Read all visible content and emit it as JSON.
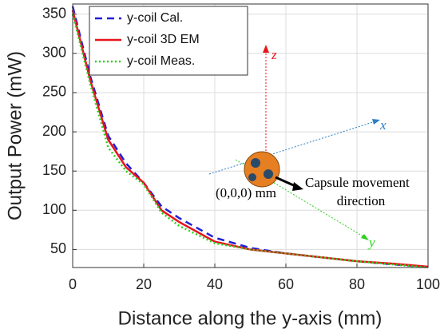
{
  "chart_data": {
    "type": "line",
    "xlabel": "Distance along the  y-axis (mm)",
    "ylabel": "Output Power (mW)",
    "x": [
      0,
      5,
      10,
      15,
      20,
      25,
      30,
      40,
      50,
      60,
      70,
      80,
      90,
      100
    ],
    "series": [
      {
        "name": "y-coil Cal.",
        "color": "#1f1fd6",
        "style": "dashed",
        "values": [
          360,
          270,
          195,
          160,
          135,
          105,
          90,
          65,
          52,
          45,
          40,
          35,
          31,
          28
        ]
      },
      {
        "name": "y-coil 3D EM",
        "color": "#e8141c",
        "style": "solid",
        "values": [
          355,
          265,
          190,
          155,
          135,
          100,
          85,
          60,
          50,
          45,
          40,
          35,
          32,
          28
        ]
      },
      {
        "name": "y-coil Meas.",
        "color": "#2bd11e",
        "style": "dotted",
        "values": [
          350,
          260,
          180,
          150,
          133,
          97,
          80,
          58,
          50,
          45,
          40,
          35,
          31,
          27
        ]
      }
    ],
    "xlim": [
      0,
      100
    ],
    "xticks": [
      0,
      20,
      40,
      60,
      80,
      100
    ],
    "ylim": [
      27,
      363
    ],
    "yticks": [
      50,
      100,
      150,
      200,
      250,
      300,
      350
    ],
    "grid": true,
    "legend": "upper left",
    "annotations": [
      "z",
      "x",
      "y",
      "(0,0,0) mm",
      "Capsule movement",
      "direction"
    ]
  }
}
